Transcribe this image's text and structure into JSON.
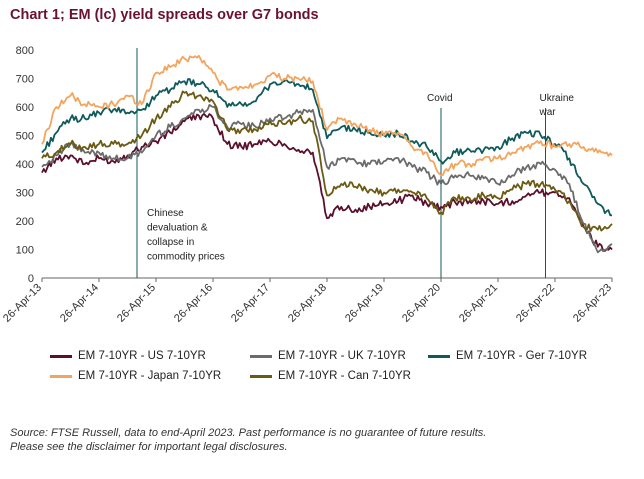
{
  "title": "Chart 1; EM (lc) yield spreads over G7 bonds",
  "source_lines": [
    "Source: FTSE Russell, data to end-April 2023. Past performance is no guarantee of future results.",
    "Please see the disclaimer for important legal disclosures."
  ],
  "chart_data": {
    "type": "line",
    "x_ticks": [
      "26-Apr-13",
      "26-Apr-14",
      "26-Apr-15",
      "26-Apr-16",
      "26-Apr-17",
      "26-Apr-18",
      "26-Apr-19",
      "26-Apr-20",
      "26-Apr-21",
      "26-Apr-22",
      "26-Apr-23"
    ],
    "ylim": [
      0,
      800
    ],
    "y_ticks": [
      0,
      100,
      200,
      300,
      400,
      500,
      600,
      700,
      800
    ],
    "grid": false,
    "legend_position": "bottom",
    "x": [
      "2013-04",
      "2013-07",
      "2013-10",
      "2014-01",
      "2014-04",
      "2014-07",
      "2014-10",
      "2015-01",
      "2015-04",
      "2015-07",
      "2015-10",
      "2016-01",
      "2016-04",
      "2016-07",
      "2016-10",
      "2017-01",
      "2017-04",
      "2017-07",
      "2017-10",
      "2018-01",
      "2018-04",
      "2018-07",
      "2018-10",
      "2019-01",
      "2019-04",
      "2019-07",
      "2019-10",
      "2020-01",
      "2020-04",
      "2020-07",
      "2020-10",
      "2021-01",
      "2021-04",
      "2021-07",
      "2021-10",
      "2022-01",
      "2022-04",
      "2022-07",
      "2022-10",
      "2023-01",
      "2023-04"
    ],
    "series": [
      {
        "name": "EM 7-10YR - US 7-10YR",
        "color": "#5a0f2c",
        "values": [
          370,
          420,
          430,
          400,
          420,
          410,
          430,
          460,
          480,
          510,
          550,
          570,
          560,
          470,
          460,
          470,
          480,
          470,
          450,
          440,
          210,
          250,
          240,
          250,
          260,
          270,
          290,
          260,
          250,
          265,
          270,
          270,
          260,
          270,
          290,
          300,
          300,
          280,
          180,
          110,
          100
        ]
      },
      {
        "name": "EM 7-10YR - UK 7-10YR",
        "color": "#6b6b6b",
        "values": [
          390,
          430,
          470,
          440,
          440,
          420,
          420,
          440,
          500,
          530,
          560,
          590,
          600,
          530,
          540,
          530,
          560,
          560,
          580,
          590,
          390,
          420,
          410,
          400,
          410,
          420,
          390,
          370,
          330,
          360,
          360,
          350,
          330,
          360,
          390,
          400,
          380,
          330,
          190,
          90,
          120
        ]
      },
      {
        "name": "EM 7-10YR - Ger 7-10YR",
        "color": "#0f5a5a",
        "values": [
          440,
          510,
          560,
          560,
          580,
          590,
          580,
          590,
          640,
          660,
          690,
          680,
          660,
          600,
          610,
          620,
          680,
          690,
          680,
          660,
          490,
          530,
          520,
          510,
          500,
          510,
          480,
          460,
          410,
          440,
          450,
          450,
          460,
          490,
          510,
          500,
          470,
          420,
          330,
          260,
          220
        ]
      },
      {
        "name": "EM 7-10YR - Japan 7-10YR",
        "color": "#f2a55e",
        "values": [
          470,
          600,
          640,
          610,
          600,
          610,
          640,
          610,
          720,
          740,
          770,
          780,
          720,
          660,
          670,
          680,
          710,
          700,
          700,
          690,
          520,
          560,
          540,
          520,
          500,
          510,
          460,
          440,
          360,
          400,
          400,
          420,
          420,
          440,
          460,
          480,
          460,
          470,
          460,
          440,
          430
        ]
      },
      {
        "name": "EM 7-10YR - Can 7-10YR",
        "color": "#6b5a12",
        "values": [
          420,
          440,
          470,
          460,
          470,
          470,
          470,
          500,
          560,
          600,
          650,
          640,
          620,
          520,
          520,
          520,
          550,
          540,
          560,
          550,
          290,
          330,
          320,
          310,
          300,
          310,
          300,
          280,
          230,
          280,
          280,
          290,
          280,
          310,
          330,
          330,
          310,
          270,
          180,
          170,
          190
        ]
      }
    ],
    "annotations": [
      {
        "x": "2014-12",
        "lines": [
          "Chinese",
          "devaluation &",
          "collapse in",
          "commodity prices"
        ]
      },
      {
        "x": "2020-04",
        "lines": [
          "Covid"
        ]
      },
      {
        "x": "2022-02",
        "lines": [
          "Ukraine",
          "war"
        ]
      }
    ]
  }
}
